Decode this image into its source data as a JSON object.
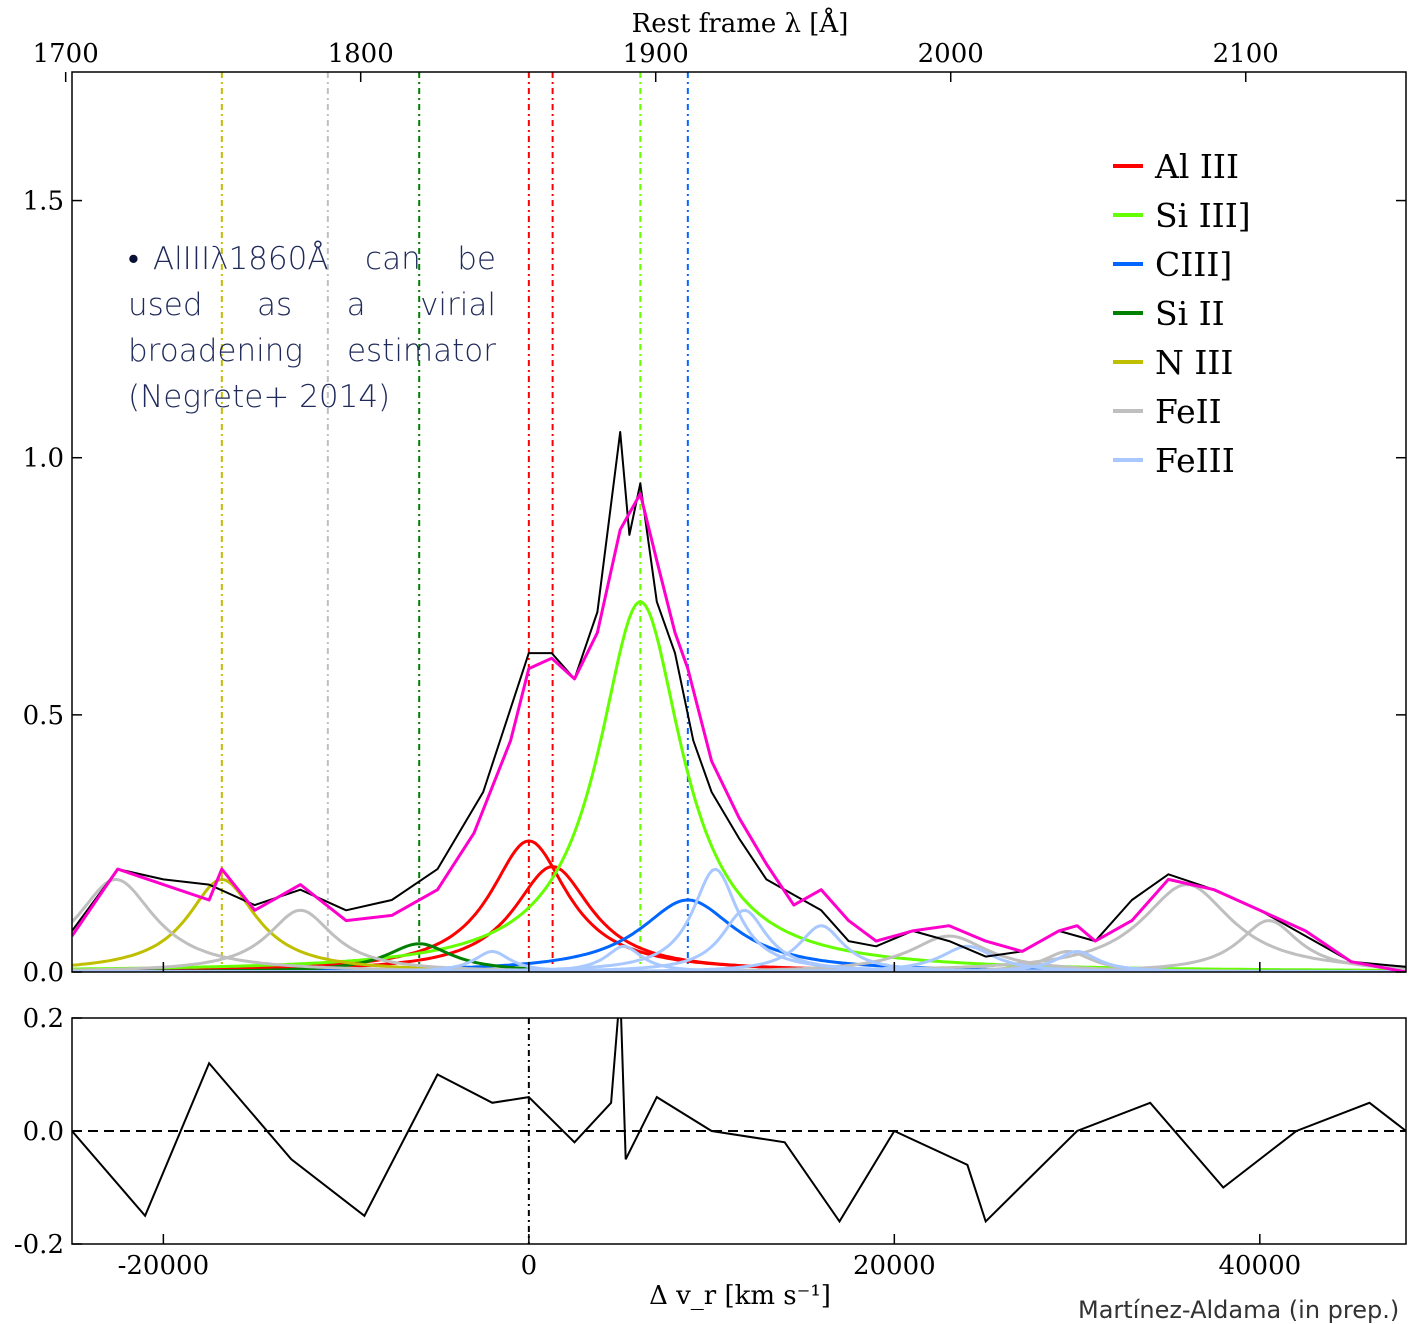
{
  "chart_data": [
    {
      "type": "line",
      "panel": "main",
      "title": "",
      "xlabel": "Δ v_r [km s⁻¹]",
      "ylabel": "",
      "top_axis_label": "Rest frame λ [Å]",
      "xlim": [
        -25000,
        48000
      ],
      "ylim": [
        0,
        1.75
      ],
      "top_ticks": [
        "1700",
        "1800",
        "1900",
        "2000",
        "2100"
      ],
      "top_tick_wavelengths": [
        1700,
        1800,
        1900,
        2000,
        2100
      ],
      "ref_wavelength": 1857,
      "xticks": [
        "-20000",
        "0",
        "20000",
        "40000"
      ],
      "yticks": [
        "0.0",
        "0.5",
        "1.0",
        "1.5"
      ],
      "legend_position": "upper-right",
      "legend": [
        {
          "name": "Al III",
          "color": "#ff0000"
        },
        {
          "name": "Si III]",
          "color": "#66ff00"
        },
        {
          "name": "CIII]",
          "color": "#0066ff"
        },
        {
          "name": "Si II",
          "color": "#008000"
        },
        {
          "name": "N III",
          "color": "#bfbf00"
        },
        {
          "name": "FeII",
          "color": "#bfbfbf"
        },
        {
          "name": "FeIII",
          "color": "#a8c8ff"
        }
      ],
      "vertical_lines": [
        {
          "x": -16800,
          "color": "#bfbf00"
        },
        {
          "x": -11000,
          "color": "#bfbfbf"
        },
        {
          "x": -6000,
          "color": "#008000"
        },
        {
          "x": 0,
          "color": "#ff0000"
        },
        {
          "x": 1300,
          "color": "#ff0000"
        },
        {
          "x": 6100,
          "color": "#66ff00"
        },
        {
          "x": 8700,
          "color": "#0066ff"
        }
      ],
      "components": [
        {
          "line": "Al III",
          "color": "#ff0000",
          "center": 0,
          "amp": 0.255,
          "width": 2600
        },
        {
          "line": "Al III",
          "color": "#ff0000",
          "center": 1300,
          "amp": 0.205,
          "width": 2600
        },
        {
          "line": "Si III]",
          "color": "#66ff00",
          "center": 6100,
          "amp": 0.72,
          "width": 2800
        },
        {
          "line": "CIII]",
          "color": "#0066ff",
          "center": 8700,
          "amp": 0.14,
          "width": 3200
        },
        {
          "line": "Si II",
          "color": "#008000",
          "center": -6000,
          "amp": 0.055,
          "width": 2200
        },
        {
          "line": "N III",
          "color": "#bfbf00",
          "center": -16800,
          "amp": 0.18,
          "width": 2300
        },
        {
          "line": "FeII",
          "color": "#bfbfbf",
          "center": -22600,
          "amp": 0.18,
          "width": 2600
        },
        {
          "line": "FeII",
          "color": "#bfbfbf",
          "center": -12500,
          "amp": 0.12,
          "width": 2200
        },
        {
          "line": "FeII",
          "color": "#bfbfbf",
          "center": 23000,
          "amp": 0.07,
          "width": 2600
        },
        {
          "line": "FeII",
          "color": "#bfbfbf",
          "center": 29500,
          "amp": 0.04,
          "width": 1600
        },
        {
          "line": "FeII",
          "color": "#bfbfbf",
          "center": 36000,
          "amp": 0.17,
          "width": 3000
        },
        {
          "line": "FeII",
          "color": "#bfbfbf",
          "center": 40500,
          "amp": 0.1,
          "width": 2000
        },
        {
          "line": "FeIII",
          "color": "#a8c8ff",
          "center": -2000,
          "amp": 0.04,
          "width": 1200
        },
        {
          "line": "FeIII",
          "color": "#a8c8ff",
          "center": 5200,
          "amp": 0.05,
          "width": 1200
        },
        {
          "line": "FeIII",
          "color": "#a8c8ff",
          "center": 10200,
          "amp": 0.2,
          "width": 1500
        },
        {
          "line": "FeIII",
          "color": "#a8c8ff",
          "center": 11800,
          "amp": 0.12,
          "width": 1500
        },
        {
          "line": "FeIII",
          "color": "#a8c8ff",
          "center": 16000,
          "amp": 0.09,
          "width": 1500
        },
        {
          "line": "FeIII",
          "color": "#a8c8ff",
          "center": 24000,
          "amp": 0.05,
          "width": 1800
        },
        {
          "line": "FeIII",
          "color": "#a8c8ff",
          "center": 30000,
          "amp": 0.04,
          "width": 1400
        }
      ],
      "series": [
        {
          "name": "",
          "color": "#000000",
          "kind": "observed-spectrum",
          "x": [
            -25000,
            -22500,
            -20000,
            -17500,
            -15000,
            -12500,
            -10000,
            -7500,
            -5000,
            -2500,
            0,
            1250,
            2500,
            3750,
            5000,
            5500,
            6100,
            7000,
            8000,
            9000,
            10000,
            11500,
            13000,
            14500,
            16000,
            17500,
            19000,
            21000,
            23000,
            25000,
            27000,
            29000,
            31000,
            33000,
            35000,
            37500,
            40000,
            42500,
            45000,
            48000
          ],
          "y": [
            0.08,
            0.2,
            0.18,
            0.17,
            0.13,
            0.16,
            0.12,
            0.14,
            0.2,
            0.35,
            0.62,
            0.62,
            0.57,
            0.7,
            1.05,
            0.85,
            0.95,
            0.72,
            0.62,
            0.45,
            0.35,
            0.26,
            0.18,
            0.15,
            0.12,
            0.06,
            0.05,
            0.08,
            0.06,
            0.03,
            0.04,
            0.08,
            0.06,
            0.14,
            0.19,
            0.16,
            0.12,
            0.07,
            0.02,
            0.01
          ]
        },
        {
          "name": "",
          "color": "#ff00cc",
          "kind": "total-fit",
          "x": [
            -25000,
            -22500,
            -20000,
            -17500,
            -16800,
            -15000,
            -12500,
            -10000,
            -7500,
            -5000,
            -3000,
            -1000,
            0,
            1250,
            2500,
            3750,
            5000,
            6100,
            7000,
            8000,
            8700,
            10000,
            11500,
            13000,
            14500,
            16000,
            17500,
            19000,
            21000,
            23000,
            25000,
            27000,
            29000,
            30000,
            31000,
            33000,
            35000,
            37500,
            40000,
            42500,
            45000,
            48000
          ],
          "y": [
            0.07,
            0.2,
            0.17,
            0.14,
            0.2,
            0.12,
            0.17,
            0.1,
            0.11,
            0.16,
            0.27,
            0.45,
            0.59,
            0.61,
            0.57,
            0.66,
            0.86,
            0.93,
            0.8,
            0.66,
            0.59,
            0.41,
            0.3,
            0.21,
            0.13,
            0.16,
            0.1,
            0.06,
            0.08,
            0.09,
            0.06,
            0.04,
            0.08,
            0.09,
            0.06,
            0.1,
            0.18,
            0.16,
            0.12,
            0.08,
            0.02,
            0.0
          ]
        }
      ]
    },
    {
      "type": "line",
      "panel": "residuals",
      "xlim": [
        -25000,
        48000
      ],
      "ylim": [
        -0.2,
        0.2
      ],
      "yticks": [
        "-0.2",
        "0.0",
        "0.2"
      ],
      "zero_line": 0,
      "vertical_line_x": 0,
      "series": [
        {
          "name": "",
          "color": "#000000",
          "kind": "residual",
          "x": [
            -25000,
            -21000,
            -17500,
            -13000,
            -9000,
            -5000,
            -2000,
            0,
            2500,
            4500,
            5000,
            5300,
            7000,
            10000,
            14000,
            17000,
            20000,
            24000,
            25000,
            30000,
            34000,
            38000,
            42000,
            46000,
            48000
          ],
          "y": [
            0.0,
            -0.15,
            0.12,
            -0.05,
            -0.15,
            0.1,
            0.05,
            0.06,
            -0.02,
            0.05,
            0.25,
            -0.05,
            0.06,
            0.0,
            -0.02,
            -0.16,
            0.0,
            -0.06,
            -0.16,
            0.0,
            0.05,
            -0.1,
            0.0,
            0.05,
            0.0
          ]
        }
      ]
    }
  ],
  "note": {
    "bullet": "•",
    "text": "AlIIIλ1860Å can be used as a virial broadening estimator (Negrete+ 2014)"
  },
  "credit": "Martínez-Aldama (in prep.)"
}
